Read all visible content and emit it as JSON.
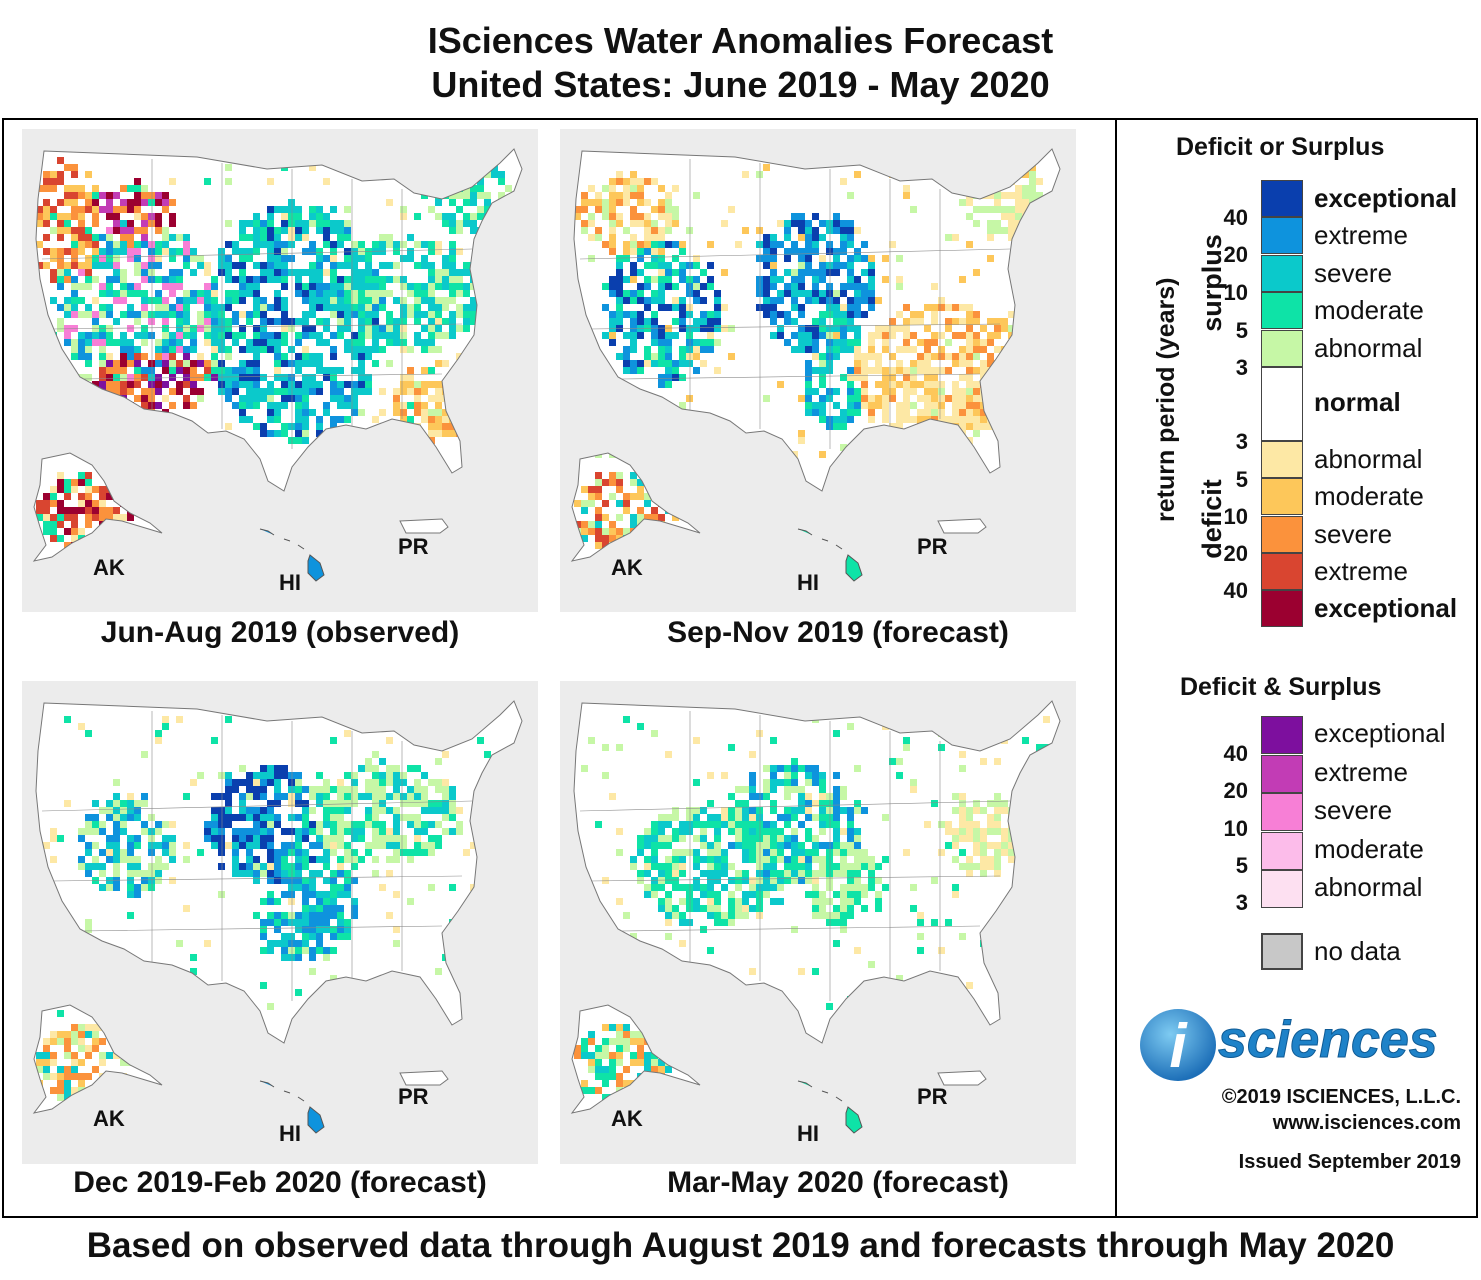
{
  "title": {
    "line1": "ISciences Water Anomalies Forecast",
    "line2": "United States: June 2019 - May 2020"
  },
  "panels": [
    {
      "caption": "Jun-Aug 2019 (observed)",
      "ak": "AK",
      "hi": "HI",
      "pr": "PR"
    },
    {
      "caption": "Sep-Nov 2019 (forecast)",
      "ak": "AK",
      "hi": "HI",
      "pr": "PR"
    },
    {
      "caption": "Dec 2019-Feb 2020 (forecast)",
      "ak": "AK",
      "hi": "HI",
      "pr": "PR"
    },
    {
      "caption": "Mar-May 2020 (forecast)",
      "ak": "AK",
      "hi": "HI",
      "pr": "PR"
    }
  ],
  "legend": {
    "deficit_or_surplus": {
      "heading": "Deficit or Surplus",
      "surplus_label": "surplus",
      "deficit_label": "deficit",
      "axis_label": "return period (years)",
      "classes": [
        {
          "label": "exceptional",
          "color": "#0a3fae"
        },
        {
          "label": "extreme",
          "color": "#0e93dd"
        },
        {
          "label": "severe",
          "color": "#0bc9cb"
        },
        {
          "label": "moderate",
          "color": "#0ee3a7"
        },
        {
          "label": "abnormal",
          "color": "#c6f7a6"
        },
        {
          "label": "normal",
          "color": "#ffffff"
        },
        {
          "label": "abnormal",
          "color": "#fde8a5"
        },
        {
          "label": "moderate",
          "color": "#fdc75a"
        },
        {
          "label": "severe",
          "color": "#fb923c"
        },
        {
          "label": "extreme",
          "color": "#d94530"
        },
        {
          "label": "exceptional",
          "color": "#9b0030"
        }
      ],
      "surplus_return_periods": [
        "40",
        "20",
        "10",
        "5",
        "3"
      ],
      "deficit_return_periods": [
        "3",
        "5",
        "10",
        "20",
        "40"
      ]
    },
    "deficit_and_surplus": {
      "heading": "Deficit & Surplus",
      "classes": [
        {
          "label": "exceptional",
          "color": "#7d0f9e"
        },
        {
          "label": "extreme",
          "color": "#c23cb5"
        },
        {
          "label": "severe",
          "color": "#f77fd6"
        },
        {
          "label": "moderate",
          "color": "#fcbcea"
        },
        {
          "label": "abnormal",
          "color": "#fde0f1"
        }
      ],
      "return_periods": [
        "40",
        "20",
        "10",
        "5",
        "3"
      ]
    },
    "no_data": {
      "label": "no data",
      "color": "#c8c8c8"
    }
  },
  "logo": {
    "i": "i",
    "text": "sciences"
  },
  "copyright": "©2019 ISCIENCES, L.L.C.",
  "website": "www.isciences.com",
  "issued": "Issued September 2019",
  "bottom_line": "Based on observed data through August 2019 and forecasts through May 2020"
}
